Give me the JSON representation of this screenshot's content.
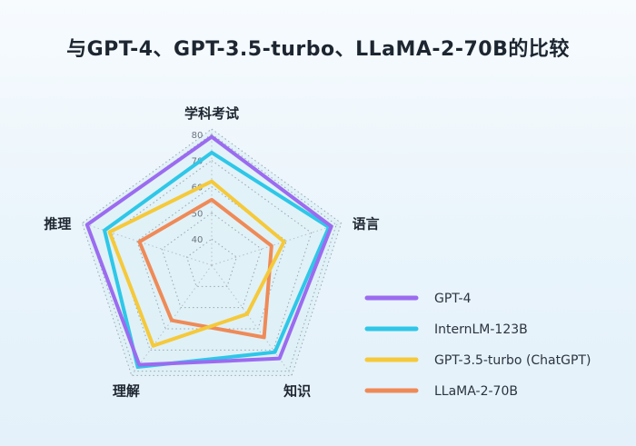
{
  "title": "与GPT-4、GPT-3.5-turbo、LLaMA-2-70B的比较",
  "chart_data": {
    "type": "radar",
    "axes": [
      "学科考试",
      "语言",
      "知识",
      "理解",
      "推理"
    ],
    "r_ticks": [
      40,
      50,
      60,
      70,
      80
    ],
    "r_min": 30,
    "r_max": 82,
    "grid": true,
    "legend_position": "bottom-right",
    "series": [
      {
        "name": "GPT-4",
        "color": "#9b6bf0",
        "values": [
          79,
          78,
          74,
          77,
          80
        ]
      },
      {
        "name": "InternLM-123B",
        "color": "#2ec7e8",
        "values": [
          73,
          77,
          71,
          78,
          73
        ]
      },
      {
        "name": "GPT-3.5-turbo (ChatGPT)",
        "color": "#f5c93a",
        "values": [
          62,
          59,
          53,
          68,
          71
        ]
      },
      {
        "name": "LLaMA-2-70B",
        "color": "#ef8a57",
        "values": [
          55,
          54,
          64,
          56,
          59
        ]
      }
    ]
  }
}
